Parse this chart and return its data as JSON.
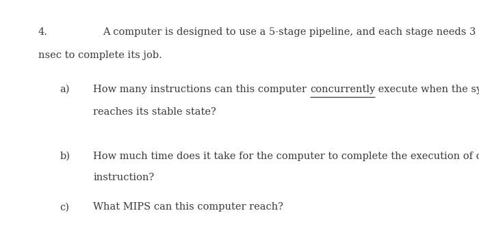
{
  "background_color": "#ffffff",
  "number": "4.",
  "intro_line1": "A computer is designed to use a 5-stage pipeline, and each stage needs 3",
  "intro_line2": "nsec to complete its job.",
  "q_a_label": "a)",
  "q_a_prefix": "How many instructions can this computer ",
  "q_a_underline": "concurrently",
  "q_a_suffix": " execute when the system",
  "q_a_line2": "reaches its stable state?",
  "q_b_label": "b)",
  "q_b_line1": "How much time does it take for the computer to complete the execution of one",
  "q_b_line2": "instruction?",
  "q_c_label": "c)",
  "q_c_text": "What MIPS can this computer reach?",
  "font_size": 10.5,
  "text_color": "#3a3a3a",
  "figwidth": 7.0,
  "figheight": 3.31
}
